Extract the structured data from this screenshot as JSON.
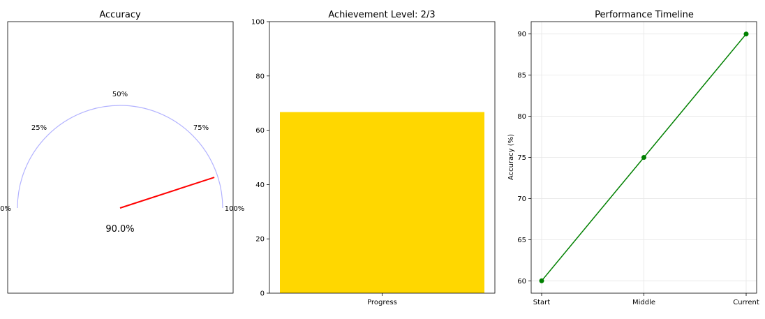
{
  "chart_data": [
    {
      "type": "gauge",
      "title": "Accuracy",
      "value": 90.0,
      "value_label": "90.0%",
      "tick_labels": [
        "0%",
        "25%",
        "50%",
        "75%",
        "100%"
      ],
      "tick_values": [
        0,
        25,
        50,
        75,
        100
      ],
      "arc_color": "#b3b3ff",
      "needle_color": "#ff0000"
    },
    {
      "type": "bar",
      "title": "Achievement Level: 2/3",
      "categories": [
        "Progress"
      ],
      "values": [
        66.7
      ],
      "ylim": [
        0,
        100
      ],
      "yticks": [
        0,
        20,
        40,
        60,
        80,
        100
      ],
      "ytick_labels": [
        "0",
        "20",
        "40",
        "60",
        "80",
        "100"
      ],
      "bar_color": "#ffd700"
    },
    {
      "type": "line",
      "title": "Performance Timeline",
      "ylabel": "Accuracy (%)",
      "categories": [
        "Start",
        "Middle",
        "Current"
      ],
      "values": [
        60,
        75,
        90
      ],
      "ylim": [
        58.5,
        91.5
      ],
      "yticks": [
        60,
        65,
        70,
        75,
        80,
        85,
        90
      ],
      "ytick_labels": [
        "60",
        "65",
        "70",
        "75",
        "80",
        "85",
        "90"
      ],
      "grid": true,
      "line_color": "#008000"
    }
  ]
}
